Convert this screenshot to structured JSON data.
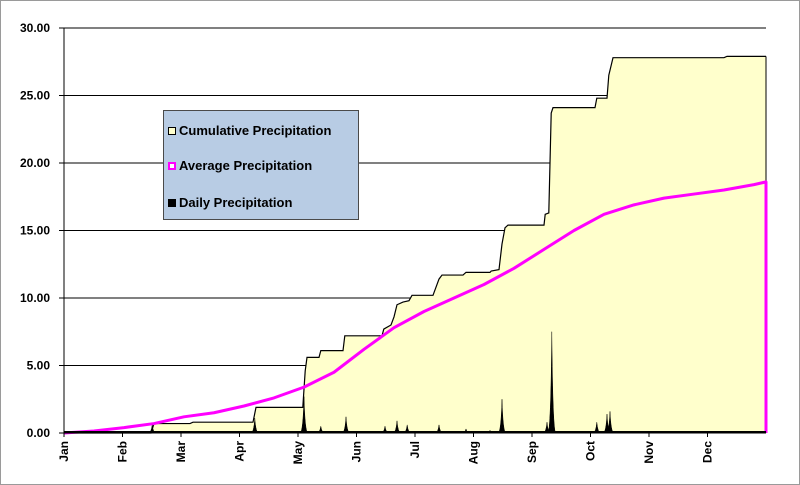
{
  "chart_data": {
    "type": "area",
    "title": "",
    "xlabel": "",
    "ylabel": "",
    "ylim": [
      0,
      30
    ],
    "grid": true,
    "legend_position": "upper-left",
    "y_ticks": [
      "0.00",
      "5.00",
      "10.00",
      "15.00",
      "20.00",
      "25.00",
      "30.00"
    ],
    "x_ticks": [
      "Jan",
      "Feb",
      "Mar",
      "Apr",
      "May",
      "Jun",
      "Jul",
      "Aug",
      "Sep",
      "Oct",
      "Nov",
      "Dec"
    ],
    "series": [
      {
        "name": "Cumulative Precipitation",
        "kind": "step-area",
        "color": "#ffffcc",
        "line_color": "#000000",
        "points": [
          [
            0,
            0
          ],
          [
            1.45,
            0
          ],
          [
            1.5,
            0.7
          ],
          [
            2.1,
            0.7
          ],
          [
            2.15,
            0.8
          ],
          [
            3.15,
            0.8
          ],
          [
            3.2,
            1.9
          ],
          [
            3.98,
            1.9
          ],
          [
            4.02,
            4.6
          ],
          [
            4.05,
            5.6
          ],
          [
            4.25,
            5.6
          ],
          [
            4.28,
            6.1
          ],
          [
            4.65,
            6.1
          ],
          [
            4.68,
            7.2
          ],
          [
            5.3,
            7.2
          ],
          [
            5.33,
            7.7
          ],
          [
            5.45,
            8.0
          ],
          [
            5.5,
            8.6
          ],
          [
            5.55,
            9.5
          ],
          [
            5.65,
            9.7
          ],
          [
            5.75,
            9.8
          ],
          [
            5.8,
            10.2
          ],
          [
            6.15,
            10.2
          ],
          [
            6.25,
            11.4
          ],
          [
            6.3,
            11.7
          ],
          [
            6.65,
            11.7
          ],
          [
            6.7,
            11.9
          ],
          [
            7.1,
            11.9
          ],
          [
            7.12,
            12.0
          ],
          [
            7.25,
            12.1
          ],
          [
            7.3,
            14.0
          ],
          [
            7.35,
            15.2
          ],
          [
            7.4,
            15.4
          ],
          [
            8.0,
            15.4
          ],
          [
            8.02,
            16.2
          ],
          [
            8.08,
            16.3
          ],
          [
            8.12,
            23.7
          ],
          [
            8.15,
            24.1
          ],
          [
            8.85,
            24.1
          ],
          [
            8.88,
            24.8
          ],
          [
            9.05,
            24.8
          ],
          [
            9.08,
            26.5
          ],
          [
            9.15,
            27.8
          ],
          [
            11.0,
            27.8
          ],
          [
            11.05,
            27.9
          ],
          [
            11.7,
            27.9
          ],
          [
            11.7,
            0
          ]
        ]
      },
      {
        "name": "Average Precipitation",
        "kind": "line",
        "color": "#ff00ff",
        "points": [
          [
            0,
            0
          ],
          [
            0.5,
            0.15
          ],
          [
            1,
            0.4
          ],
          [
            1.5,
            0.7
          ],
          [
            2,
            1.2
          ],
          [
            2.5,
            1.5
          ],
          [
            3,
            2.0
          ],
          [
            3.5,
            2.6
          ],
          [
            4,
            3.4
          ],
          [
            4.5,
            4.5
          ],
          [
            5,
            6.2
          ],
          [
            5.5,
            7.8
          ],
          [
            6,
            9.0
          ],
          [
            6.5,
            10.0
          ],
          [
            7,
            11.0
          ],
          [
            7.5,
            12.2
          ],
          [
            8,
            13.6
          ],
          [
            8.5,
            15.0
          ],
          [
            9,
            16.2
          ],
          [
            9.5,
            16.9
          ],
          [
            10,
            17.4
          ],
          [
            10.5,
            17.7
          ],
          [
            11,
            18.0
          ],
          [
            11.5,
            18.4
          ],
          [
            11.7,
            18.6
          ],
          [
            11.7,
            0
          ]
        ]
      },
      {
        "name": "Daily Precipitation",
        "kind": "spikes",
        "color": "#000000",
        "spikes": [
          [
            1.47,
            0.6
          ],
          [
            3.18,
            1.1
          ],
          [
            4.0,
            2.7
          ],
          [
            4.28,
            0.5
          ],
          [
            4.7,
            1.2
          ],
          [
            5.35,
            0.5
          ],
          [
            5.55,
            0.9
          ],
          [
            5.72,
            0.6
          ],
          [
            6.25,
            0.6
          ],
          [
            6.7,
            0.3
          ],
          [
            7.1,
            0.2
          ],
          [
            7.3,
            2.5
          ],
          [
            8.05,
            0.8
          ],
          [
            8.13,
            7.5
          ],
          [
            8.88,
            0.8
          ],
          [
            9.05,
            1.4
          ],
          [
            9.1,
            1.6
          ],
          [
            11.05,
            0.1
          ]
        ]
      }
    ]
  },
  "legend": {
    "items": [
      {
        "label": "Cumulative Precipitation",
        "color": "#ffffcc"
      },
      {
        "label": "Average Precipitation",
        "color": "#ff00ff"
      },
      {
        "label": "Daily Precipitation",
        "color": "#000000"
      }
    ]
  }
}
